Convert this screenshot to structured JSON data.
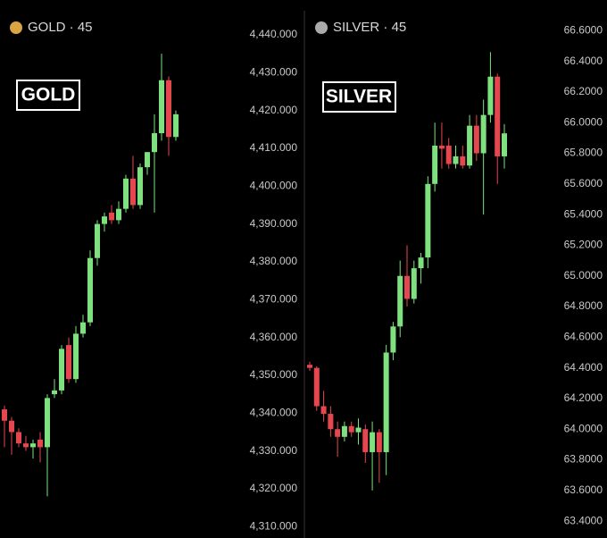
{
  "chart_data": [
    {
      "type": "candlestick",
      "title": "GOLD · 45",
      "annotation": "GOLD",
      "up_color": "#7ee07e",
      "down_color": "#e5474f",
      "ylim": [
        4307,
        4449.2
      ],
      "yticks": [
        {
          "value": 4440,
          "label": "4,440.000"
        },
        {
          "value": 4430,
          "label": "4,430.000"
        },
        {
          "value": 4420,
          "label": "4,420.000"
        },
        {
          "value": 4410,
          "label": "4,410.000"
        },
        {
          "value": 4400,
          "label": "4,400.000"
        },
        {
          "value": 4390,
          "label": "4,390.000"
        },
        {
          "value": 4380,
          "label": "4,380.000"
        },
        {
          "value": 4370,
          "label": "4,370.000"
        },
        {
          "value": 4360,
          "label": "4,360.000"
        },
        {
          "value": 4350,
          "label": "4,350.000"
        },
        {
          "value": 4340,
          "label": "4,340.000"
        },
        {
          "value": 4330,
          "label": "4,330.000"
        },
        {
          "value": 4320,
          "label": "4,320.000"
        },
        {
          "value": 4310,
          "label": "4,310.000"
        }
      ],
      "open": [
        4341,
        4338,
        4335,
        4332,
        4331,
        4333,
        4331,
        4345,
        4346,
        4358,
        4349,
        4361,
        4364,
        4381,
        4390,
        4393,
        4391,
        4394,
        4402,
        4395,
        4405,
        4409,
        4414,
        4428,
        4413
      ],
      "high": [
        4342,
        4339,
        4336,
        4334,
        4333,
        4335,
        4345,
        4349,
        4358,
        4360,
        4363,
        4366,
        4383,
        4391,
        4393,
        4395,
        4396,
        4403,
        4408,
        4406,
        4409,
        4419,
        4435,
        4429,
        4420
      ],
      "low": [
        4331,
        4329,
        4331,
        4330,
        4328,
        4327,
        4318,
        4344,
        4345,
        4348,
        4348,
        4360,
        4363,
        4379,
        4388,
        4390,
        4390,
        4393,
        4394,
        4394,
        4403,
        4393,
        4412,
        4408,
        4412
      ],
      "close": [
        4338,
        4335,
        4332,
        4331,
        4332,
        4331,
        4344,
        4346,
        4357,
        4349,
        4361,
        4364,
        4381,
        4390,
        4392,
        4391,
        4394,
        4402,
        4395,
        4405,
        4409,
        4414,
        4428,
        4413,
        4419
      ]
    },
    {
      "type": "candlestick",
      "title": "SILVER · 45",
      "annotation": "SILVER",
      "up_color": "#7ee07e",
      "down_color": "#e5474f",
      "ylim": [
        63.29,
        66.8
      ],
      "yticks": [
        {
          "value": 66.6,
          "label": "66.6000"
        },
        {
          "value": 66.4,
          "label": "66.4000"
        },
        {
          "value": 66.2,
          "label": "66.2000"
        },
        {
          "value": 66,
          "label": "66.0000"
        },
        {
          "value": 65.8,
          "label": "65.8000"
        },
        {
          "value": 65.6,
          "label": "65.6000"
        },
        {
          "value": 65.4,
          "label": "65.4000"
        },
        {
          "value": 65.2,
          "label": "65.2000"
        },
        {
          "value": 65,
          "label": "65.0000"
        },
        {
          "value": 64.8,
          "label": "64.8000"
        },
        {
          "value": 64.6,
          "label": "64.6000"
        },
        {
          "value": 64.4,
          "label": "64.4000"
        },
        {
          "value": 64.2,
          "label": "64.2000"
        },
        {
          "value": 64,
          "label": "64.0000"
        },
        {
          "value": 63.8,
          "label": "63.8000"
        },
        {
          "value": 63.6,
          "label": "63.6000"
        },
        {
          "value": 63.4,
          "label": "63.4000"
        }
      ],
      "open": [
        64.42,
        64.4,
        64.15,
        64.1,
        64.0,
        63.95,
        64.02,
        63.98,
        64.0,
        63.85,
        63.98,
        63.85,
        64.5,
        64.67,
        65.0,
        64.85,
        65.05,
        65.12,
        65.6,
        65.85,
        65.85,
        65.73,
        65.78,
        65.72,
        65.98,
        65.8,
        66.05,
        66.3,
        65.78
      ],
      "high": [
        64.44,
        64.41,
        64.25,
        64.15,
        64.05,
        64.05,
        64.05,
        64.07,
        64.03,
        64.05,
        64.0,
        64.55,
        64.7,
        65.1,
        65.2,
        65.1,
        65.15,
        65.65,
        66.0,
        66.0,
        65.9,
        65.85,
        65.85,
        66.05,
        66.05,
        66.15,
        66.46,
        66.32,
        65.99
      ],
      "low": [
        64.38,
        64.12,
        64.05,
        63.95,
        63.82,
        63.92,
        63.95,
        63.9,
        63.78,
        63.6,
        63.65,
        63.7,
        64.45,
        64.6,
        64.8,
        64.82,
        64.95,
        65.05,
        65.55,
        65.7,
        65.7,
        65.7,
        65.7,
        65.7,
        65.75,
        65.4,
        66.0,
        65.6,
        65.7
      ],
      "close": [
        64.4,
        64.15,
        64.1,
        64.0,
        63.95,
        64.02,
        63.98,
        64.01,
        63.85,
        63.98,
        63.85,
        64.5,
        64.67,
        65.0,
        64.85,
        65.05,
        65.12,
        65.6,
        65.85,
        65.83,
        65.73,
        65.78,
        65.72,
        65.98,
        65.8,
        66.05,
        66.3,
        65.78,
        65.93
      ]
    }
  ]
}
